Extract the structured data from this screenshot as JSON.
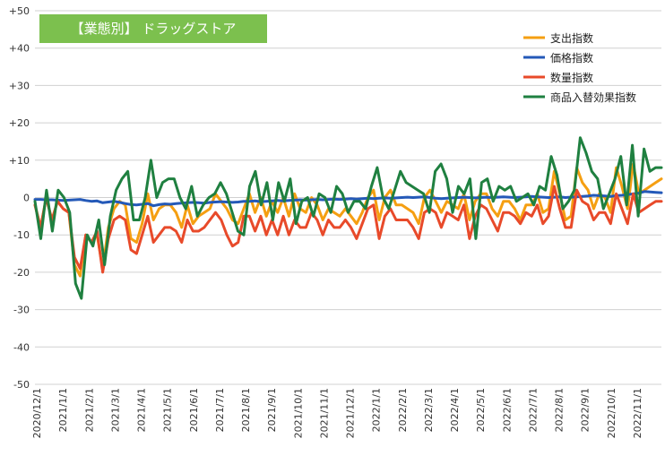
{
  "badge": "【業態別】 ドラッグストア",
  "chart_data": {
    "type": "line",
    "title": "",
    "xlabel": "",
    "ylabel": "",
    "ylim": [
      -50,
      50
    ],
    "yticks": [
      "+50",
      "+40",
      "+30",
      "+20",
      "+10",
      "0",
      "-10",
      "-20",
      "-30",
      "-40",
      "-50"
    ],
    "xtick_labels": [
      "2020/12/1",
      "2021/1/1",
      "2021/2/1",
      "2021/3/1",
      "2021/4/1",
      "2021/5/1",
      "2021/6/1",
      "2021/7/1",
      "2021/8/1",
      "2021/9/1",
      "2021/10/1",
      "2021/11/1",
      "2021/12/1",
      "2022/1/1",
      "2022/2/1",
      "2022/3/1",
      "2022/4/1",
      "2022/5/1",
      "2022/6/1",
      "2022/7/1",
      "2022/8/1",
      "2022/9/1",
      "2022/10/1",
      "2022/11/1"
    ],
    "legend_position": "top-right",
    "grid": true,
    "series": [
      {
        "name": "支出指数",
        "color": "#f59f12",
        "values": [
          -2,
          -8,
          0,
          -6,
          -1,
          -3,
          -4,
          -18,
          -21,
          -10,
          -12,
          -10,
          -19,
          -8,
          -3,
          -1,
          -2,
          -11,
          -12,
          -7,
          1,
          -6,
          -3,
          -2,
          -2,
          -4,
          -8,
          -2,
          -7,
          -5,
          -4,
          -3,
          1,
          -1,
          -3,
          -6,
          -7,
          -3,
          1,
          -4,
          0,
          -5,
          -1,
          -4,
          0,
          -5,
          1,
          -3,
          -4,
          0,
          -2,
          -6,
          -3,
          -4,
          -5,
          -3,
          -5,
          -7,
          -4,
          0,
          2,
          -6,
          0,
          2,
          -2,
          -2,
          -3,
          -4,
          -7,
          0,
          2,
          -1,
          -4,
          -1,
          -2,
          -3,
          1,
          -6,
          -1,
          1,
          1,
          -3,
          -5,
          -1,
          -1,
          -3,
          -6,
          -2,
          -2,
          1,
          -4,
          -3,
          7,
          1,
          -6,
          -5,
          8,
          4,
          2,
          -3,
          1,
          0,
          -4,
          8,
          3,
          -3,
          9,
          1,
          2,
          3,
          4,
          5
        ]
      },
      {
        "name": "価格指数",
        "color": "#2459b8",
        "values": [
          -0.5,
          -0.5,
          -0.6,
          -0.6,
          -0.7,
          -0.8,
          -0.7,
          -0.6,
          -0.5,
          -0.8,
          -1.0,
          -0.9,
          -1.4,
          -1.2,
          -1.0,
          -1.3,
          -1.6,
          -1.9,
          -2.0,
          -1.8,
          -1.6,
          -2.2,
          -1.9,
          -1.7,
          -1.8,
          -1.6,
          -1.5,
          -1.4,
          -1.3,
          -1.4,
          -1.5,
          -1.3,
          -1.2,
          -1.1,
          -1.2,
          -1.3,
          -1.2,
          -1.0,
          -1.0,
          -0.9,
          -1.1,
          -1.0,
          -0.9,
          -0.8,
          -0.9,
          -0.8,
          -0.7,
          -0.6,
          -0.7,
          -0.6,
          -0.5,
          -0.6,
          -0.5,
          -0.4,
          -0.5,
          -0.4,
          -0.3,
          -0.4,
          -0.3,
          -0.2,
          -0.3,
          -0.2,
          -0.1,
          -0.2,
          -0.1,
          0.0,
          0.1,
          0.0,
          0.1,
          0.2,
          0.0,
          -0.2,
          -0.3,
          -0.2,
          -0.1,
          0.0,
          0.1,
          0.0,
          -0.1,
          0.0,
          0.1,
          0.0,
          0.1,
          0.2,
          0.1,
          0.0,
          0.1,
          0.2,
          0.3,
          0.2,
          0.1,
          0.0,
          0.1,
          0.2,
          0.0,
          0.1,
          0.2,
          0.3,
          0.4,
          0.6,
          0.5,
          0.4,
          0.3,
          0.5,
          0.6,
          0.8,
          1.0,
          1.2,
          1.6,
          1.5,
          1.4,
          1.3
        ]
      },
      {
        "name": "数量指数",
        "color": "#e84a2a",
        "values": [
          -2,
          -8,
          0,
          -6,
          -1,
          -3,
          -4,
          -16,
          -19,
          -10,
          -12,
          -9,
          -20,
          -11,
          -6,
          -5,
          -6,
          -14,
          -15,
          -10,
          -5,
          -12,
          -10,
          -8,
          -8,
          -9,
          -12,
          -6,
          -9,
          -9,
          -8,
          -6,
          -4,
          -6,
          -10,
          -13,
          -12,
          -5,
          -5,
          -9,
          -5,
          -10,
          -6,
          -10,
          -5,
          -10,
          -6,
          -8,
          -8,
          -4,
          -6,
          -10,
          -6,
          -8,
          -8,
          -6,
          -8,
          -11,
          -7,
          -3,
          -2,
          -11,
          -5,
          -3,
          -6,
          -6,
          -6,
          -8,
          -11,
          -4,
          -3,
          -4,
          -8,
          -4,
          -5,
          -6,
          -2,
          -11,
          -5,
          -2,
          -3,
          -6,
          -9,
          -4,
          -4,
          -5,
          -7,
          -4,
          -5,
          -2,
          -7,
          -5,
          3,
          -3,
          -8,
          -8,
          2,
          -1,
          -2,
          -6,
          -4,
          -4,
          -7,
          1,
          -3,
          -7,
          1,
          -4,
          -3,
          -2,
          -1,
          -1
        ]
      },
      {
        "name": "商品入替効果指数",
        "color": "#1f8040",
        "values": [
          -1,
          -11,
          2,
          -9,
          2,
          0,
          -4,
          -23,
          -27,
          -10,
          -13,
          -6,
          -18,
          -5,
          2,
          5,
          7,
          -6,
          -6,
          0,
          10,
          0,
          4,
          5,
          5,
          0,
          -3,
          3,
          -5,
          -2,
          0,
          1,
          4,
          1,
          -4,
          -9,
          -10,
          3,
          7,
          -2,
          4,
          -6,
          4,
          -1,
          5,
          -7,
          -1,
          0,
          -5,
          1,
          0,
          -4,
          3,
          1,
          -4,
          -1,
          -1,
          -3,
          3,
          8,
          0,
          -3,
          2,
          7,
          4,
          3,
          2,
          1,
          -4,
          7,
          9,
          5,
          -4,
          3,
          1,
          5,
          -11,
          4,
          5,
          -1,
          3,
          2,
          3,
          -1,
          0,
          1,
          -2,
          3,
          2,
          11,
          6,
          -3,
          -1,
          2,
          16,
          12,
          7,
          5,
          -3,
          1,
          5,
          11,
          -2,
          14,
          -5,
          13,
          7,
          8,
          8
        ]
      }
    ]
  }
}
